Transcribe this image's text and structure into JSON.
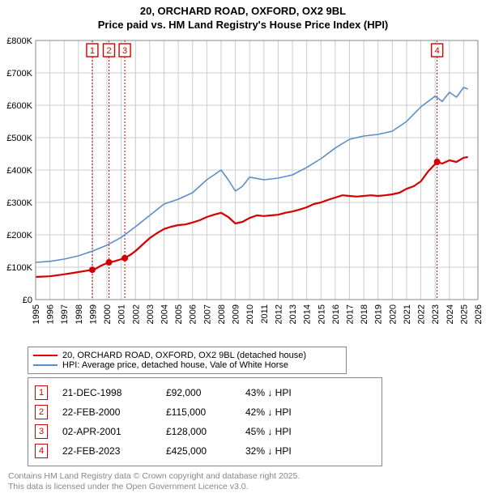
{
  "title": {
    "line1": "20, ORCHARD ROAD, OXFORD, OX2 9BL",
    "line2": "Price paid vs. HM Land Registry's House Price Index (HPI)",
    "fontsize": 13,
    "color": "#000000"
  },
  "chart": {
    "type": "line",
    "background_color": "#ffffff",
    "plot_border_color": "#888888",
    "grid_color": "#cccccc",
    "x": {
      "min": 1995,
      "max": 2026,
      "ticks": [
        1995,
        1996,
        1997,
        1998,
        1999,
        2000,
        2001,
        2002,
        2003,
        2004,
        2005,
        2006,
        2007,
        2008,
        2009,
        2010,
        2011,
        2012,
        2013,
        2014,
        2015,
        2016,
        2017,
        2018,
        2019,
        2020,
        2021,
        2022,
        2023,
        2024,
        2025,
        2026
      ],
      "label_fontsize": 11,
      "label_rotation": -90
    },
    "y": {
      "min": 0,
      "max": 800000,
      "ticks": [
        0,
        100000,
        200000,
        300000,
        400000,
        500000,
        600000,
        700000,
        800000
      ],
      "tick_labels": [
        "£0",
        "£100K",
        "£200K",
        "£300K",
        "£400K",
        "£500K",
        "£600K",
        "£700K",
        "£800K"
      ],
      "label_fontsize": 11
    },
    "series": [
      {
        "name": "property",
        "color": "#d40000",
        "line_width": 2.2,
        "points": [
          [
            1995,
            70000
          ],
          [
            1996,
            72000
          ],
          [
            1997,
            78000
          ],
          [
            1998,
            85000
          ],
          [
            1998.97,
            92000
          ],
          [
            1999.2,
            95000
          ],
          [
            1999.6,
            105000
          ],
          [
            2000.14,
            115000
          ],
          [
            2000.5,
            118000
          ],
          [
            2001.25,
            128000
          ],
          [
            2001.7,
            140000
          ],
          [
            2002,
            150000
          ],
          [
            2002.5,
            170000
          ],
          [
            2003,
            190000
          ],
          [
            2003.5,
            205000
          ],
          [
            2004,
            218000
          ],
          [
            2004.5,
            225000
          ],
          [
            2005,
            230000
          ],
          [
            2005.5,
            232000
          ],
          [
            2006,
            238000
          ],
          [
            2006.5,
            245000
          ],
          [
            2007,
            255000
          ],
          [
            2007.5,
            262000
          ],
          [
            2008,
            268000
          ],
          [
            2008.5,
            255000
          ],
          [
            2009,
            235000
          ],
          [
            2009.5,
            240000
          ],
          [
            2010,
            252000
          ],
          [
            2010.5,
            260000
          ],
          [
            2011,
            258000
          ],
          [
            2011.5,
            260000
          ],
          [
            2012,
            262000
          ],
          [
            2012.5,
            268000
          ],
          [
            2013,
            272000
          ],
          [
            2013.5,
            278000
          ],
          [
            2014,
            285000
          ],
          [
            2014.5,
            295000
          ],
          [
            2015,
            300000
          ],
          [
            2015.5,
            308000
          ],
          [
            2016,
            315000
          ],
          [
            2016.5,
            322000
          ],
          [
            2017,
            320000
          ],
          [
            2017.5,
            318000
          ],
          [
            2018,
            320000
          ],
          [
            2018.5,
            322000
          ],
          [
            2019,
            320000
          ],
          [
            2019.5,
            322000
          ],
          [
            2020,
            325000
          ],
          [
            2020.5,
            330000
          ],
          [
            2021,
            342000
          ],
          [
            2021.5,
            350000
          ],
          [
            2022,
            365000
          ],
          [
            2022.5,
            395000
          ],
          [
            2023.14,
            425000
          ],
          [
            2023.5,
            420000
          ],
          [
            2024,
            430000
          ],
          [
            2024.5,
            425000
          ],
          [
            2025,
            438000
          ],
          [
            2025.3,
            440000
          ]
        ],
        "markers": [
          {
            "x": 1998.97,
            "y": 92000
          },
          {
            "x": 2000.14,
            "y": 115000
          },
          {
            "x": 2001.25,
            "y": 128000
          },
          {
            "x": 2023.14,
            "y": 425000
          }
        ],
        "marker_radius": 4
      },
      {
        "name": "hpi",
        "color": "#5b8ec9",
        "line_width": 1.6,
        "points": [
          [
            1995,
            115000
          ],
          [
            1996,
            118000
          ],
          [
            1997,
            125000
          ],
          [
            1998,
            135000
          ],
          [
            1999,
            150000
          ],
          [
            2000,
            168000
          ],
          [
            2001,
            192000
          ],
          [
            2002,
            225000
          ],
          [
            2003,
            260000
          ],
          [
            2004,
            295000
          ],
          [
            2005,
            310000
          ],
          [
            2006,
            330000
          ],
          [
            2007,
            370000
          ],
          [
            2008,
            400000
          ],
          [
            2008.5,
            370000
          ],
          [
            2009,
            335000
          ],
          [
            2009.5,
            350000
          ],
          [
            2010,
            378000
          ],
          [
            2011,
            370000
          ],
          [
            2012,
            375000
          ],
          [
            2013,
            385000
          ],
          [
            2014,
            408000
          ],
          [
            2015,
            435000
          ],
          [
            2016,
            468000
          ],
          [
            2017,
            495000
          ],
          [
            2018,
            505000
          ],
          [
            2019,
            510000
          ],
          [
            2020,
            520000
          ],
          [
            2021,
            550000
          ],
          [
            2022,
            595000
          ],
          [
            2023,
            628000
          ],
          [
            2023.5,
            612000
          ],
          [
            2024,
            640000
          ],
          [
            2024.5,
            625000
          ],
          [
            2025,
            655000
          ],
          [
            2025.3,
            650000
          ]
        ]
      }
    ],
    "event_lines": [
      {
        "id": "1",
        "x": 1998.97,
        "color": "#d40000"
      },
      {
        "id": "2",
        "x": 2000.14,
        "color": "#d40000"
      },
      {
        "id": "3",
        "x": 2001.25,
        "color": "#d40000"
      },
      {
        "id": "4",
        "x": 2023.14,
        "color": "#d40000"
      }
    ],
    "event_label_y_offset": 16
  },
  "legend": {
    "items": [
      {
        "color": "#d40000",
        "width": 2.5,
        "label": "20, ORCHARD ROAD, OXFORD, OX2 9BL (detached house)"
      },
      {
        "color": "#5b8ec9",
        "width": 2,
        "label": "HPI: Average price, detached house, Vale of White Horse"
      }
    ]
  },
  "events": [
    {
      "id": "1",
      "color": "#d40000",
      "date": "21-DEC-1998",
      "price": "£92,000",
      "delta": "43% ↓ HPI"
    },
    {
      "id": "2",
      "color": "#d40000",
      "date": "22-FEB-2000",
      "price": "£115,000",
      "delta": "42% ↓ HPI"
    },
    {
      "id": "3",
      "color": "#d40000",
      "date": "02-APR-2001",
      "price": "£128,000",
      "delta": "45% ↓ HPI"
    },
    {
      "id": "4",
      "color": "#d40000",
      "date": "22-FEB-2023",
      "price": "£425,000",
      "delta": "32% ↓ HPI"
    }
  ],
  "footer": {
    "line1": "Contains HM Land Registry data © Crown copyright and database right 2025.",
    "line2": "This data is licensed under the Open Government Licence v3.0.",
    "color": "#888888"
  }
}
